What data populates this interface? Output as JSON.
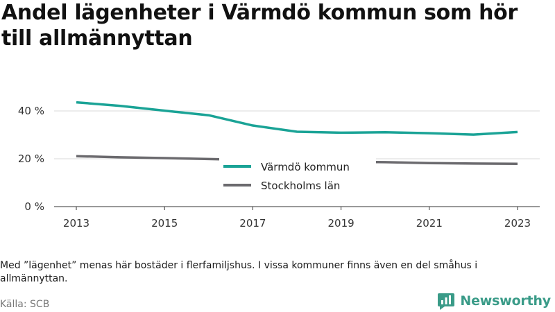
{
  "title": "Andel lägenheter i Värmdö kommun som hör till allmännyttan",
  "note": "Med ”lägenhet” menas här bostäder i flerfamiljshus. I vissa kommuner finns även en del småhus i allmännyttan.",
  "source": "Källa: SCB",
  "brand": {
    "name": "Newsworthy",
    "icon": "newsworthy-logo-icon",
    "color": "#3a9b88"
  },
  "chart_data": {
    "type": "line",
    "title": "Andel lägenheter i Värmdö kommun som hör till allmännyttan",
    "xlabel": "",
    "ylabel": "",
    "x": [
      2013,
      2014,
      2015,
      2016,
      2017,
      2018,
      2019,
      2020,
      2021,
      2022,
      2023
    ],
    "x_tick_labels": [
      "2013",
      "2015",
      "2017",
      "2019",
      "2021",
      "2023"
    ],
    "x_ticks": [
      2013,
      2015,
      2017,
      2019,
      2021,
      2023
    ],
    "y_ticks": [
      0,
      20,
      40
    ],
    "y_tick_labels": [
      "0 %",
      "20 %",
      "40 %"
    ],
    "ylim": [
      0,
      40
    ],
    "grid": "horizontal",
    "legend_position": "center",
    "series": [
      {
        "name": "Värmdö kommun",
        "color": "#1aa396",
        "values": [
          43.6,
          42.1,
          40.1,
          38.2,
          33.9,
          31.3,
          30.9,
          31.1,
          30.7,
          30.1,
          31.2
        ]
      },
      {
        "name": "Stockholms län",
        "color": "#6b6a6e",
        "values": [
          21.1,
          20.6,
          20.3,
          19.9,
          19.5,
          19.1,
          18.8,
          18.6,
          18.2,
          18.0,
          17.9
        ]
      }
    ]
  }
}
